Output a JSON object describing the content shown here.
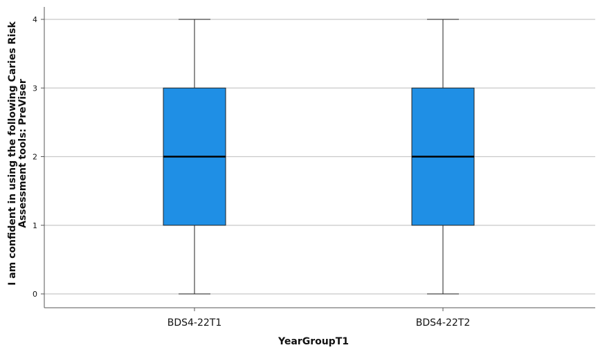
{
  "chart_data": {
    "type": "box",
    "title": "",
    "xlabel": "YearGroupT1",
    "ylabel_lines": [
      "I am confident in using the following Caries Risk",
      "Assessment tools: PreViser"
    ],
    "categories": [
      "BDS4-22T1",
      "BDS4-22T2"
    ],
    "boxes": [
      {
        "category": "BDS4-22T1",
        "min": 0,
        "q1": 1,
        "median": 2,
        "q3": 3,
        "max": 4
      },
      {
        "category": "BDS4-22T2",
        "min": 0,
        "q1": 1,
        "median": 2,
        "q3": 3,
        "max": 4
      }
    ],
    "ylim": [
      0,
      4
    ],
    "yticks": [
      0,
      1,
      2,
      3,
      4
    ],
    "grid": true,
    "box_color": "#1f8fe5",
    "gridline_color": "#c8c8c8"
  }
}
